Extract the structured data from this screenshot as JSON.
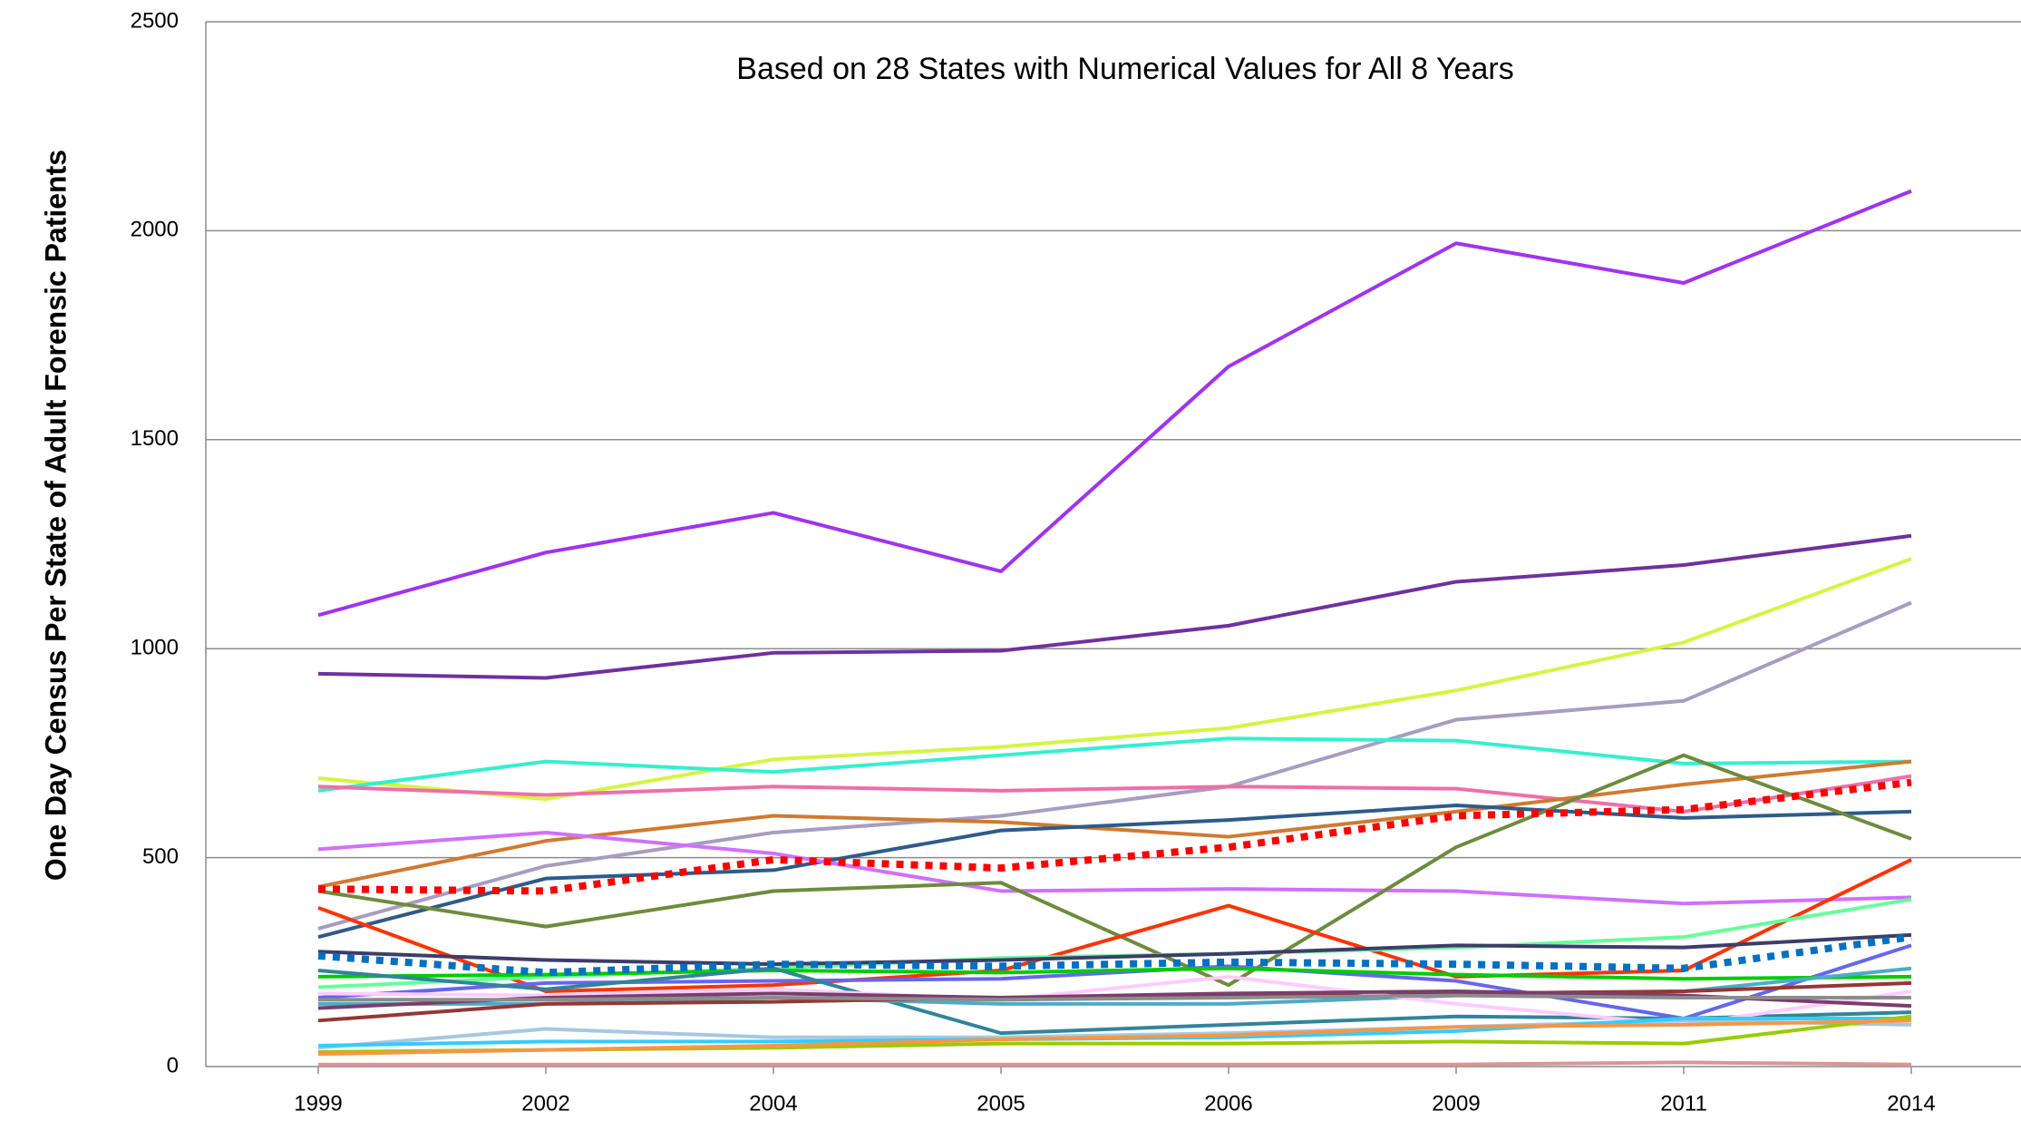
{
  "chart_data": {
    "type": "line",
    "title": "Based on 28 States with Numerical Values  for All 8 Years",
    "y_label": "One Day  Census  Per State of Adult Forensic Patients",
    "categories": [
      "1999",
      "2002",
      "2004",
      "2005",
      "2006",
      "2009",
      "2011",
      "2014"
    ],
    "ylim": [
      0,
      2500
    ],
    "yticks": [
      0,
      500,
      1000,
      1500,
      2000,
      2500
    ],
    "grid": true,
    "series": [
      {
        "color": "#a033f0",
        "values": [
          1080,
          1230,
          1325,
          1185,
          1675,
          1970,
          1875,
          2095
        ]
      },
      {
        "color": "#7030a0",
        "values": [
          940,
          930,
          990,
          995,
          1055,
          1160,
          1200,
          1270
        ]
      },
      {
        "color": "#d4f542",
        "values": [
          690,
          640,
          735,
          765,
          810,
          900,
          1015,
          1215
        ]
      },
      {
        "color": "#a89cc0",
        "values": [
          330,
          480,
          560,
          600,
          670,
          830,
          875,
          1110
        ]
      },
      {
        "color": "#33f0d0",
        "values": [
          660,
          730,
          705,
          745,
          785,
          780,
          725,
          730
        ]
      },
      {
        "color": "#ee6fa8",
        "values": [
          670,
          650,
          670,
          660,
          670,
          665,
          610,
          695
        ]
      },
      {
        "color": "#d07a30",
        "values": [
          430,
          540,
          600,
          585,
          550,
          610,
          675,
          730
        ]
      },
      {
        "color": "#2e5b8a",
        "values": [
          310,
          450,
          470,
          565,
          590,
          625,
          595,
          610
        ]
      },
      {
        "color": "#d070ff",
        "values": [
          520,
          560,
          510,
          420,
          425,
          420,
          390,
          405
        ]
      },
      {
        "color": "#6e8b3d",
        "values": [
          420,
          335,
          420,
          440,
          195,
          525,
          745,
          545
        ]
      },
      {
        "color": "#ff3300",
        "values": [
          380,
          180,
          195,
          230,
          385,
          215,
          230,
          495
        ]
      },
      {
        "color": "#66ff99",
        "values": [
          190,
          215,
          235,
          260,
          270,
          285,
          310,
          400
        ]
      },
      {
        "color": "#3d3d6b",
        "values": [
          275,
          255,
          245,
          255,
          270,
          290,
          285,
          315
        ]
      },
      {
        "color": "#6666ee",
        "values": [
          165,
          200,
          205,
          210,
          240,
          205,
          115,
          290
        ]
      },
      {
        "color": "#00cc00",
        "values": [
          215,
          220,
          230,
          225,
          235,
          220,
          210,
          215
        ]
      },
      {
        "color": "#31849b",
        "values": [
          230,
          185,
          235,
          80,
          100,
          120,
          115,
          130
        ]
      },
      {
        "color": "#4bacc6",
        "values": [
          150,
          150,
          165,
          150,
          150,
          170,
          180,
          235
        ]
      },
      {
        "color": "#953735",
        "values": [
          110,
          150,
          155,
          165,
          170,
          175,
          180,
          200
        ]
      },
      {
        "color": "#ffccff",
        "values": [
          175,
          170,
          185,
          160,
          215,
          150,
          100,
          180
        ]
      },
      {
        "color": "#7a3e6b",
        "values": [
          140,
          165,
          175,
          165,
          175,
          180,
          170,
          145
        ]
      },
      {
        "color": "#8c8c8c",
        "values": [
          160,
          160,
          165,
          160,
          165,
          170,
          165,
          165
        ]
      },
      {
        "color": "#a6c8e0",
        "values": [
          45,
          90,
          70,
          70,
          80,
          95,
          110,
          100
        ]
      },
      {
        "color": "#33ccff",
        "values": [
          50,
          60,
          60,
          65,
          70,
          85,
          115,
          115
        ]
      },
      {
        "color": "#99cc00",
        "values": [
          35,
          40,
          45,
          55,
          55,
          60,
          55,
          120
        ]
      },
      {
        "color": "#f79646",
        "values": [
          30,
          40,
          50,
          65,
          75,
          95,
          100,
          110
        ]
      },
      {
        "color": "#d99694",
        "values": [
          5,
          5,
          5,
          5,
          5,
          5,
          10,
          5
        ]
      },
      {
        "color": "#ff0000",
        "style": "dotted",
        "values": [
          425,
          420,
          495,
          475,
          525,
          600,
          615,
          680
        ]
      },
      {
        "color": "#0070c0",
        "style": "dotted",
        "values": [
          265,
          225,
          245,
          240,
          250,
          245,
          235,
          310
        ]
      }
    ]
  }
}
